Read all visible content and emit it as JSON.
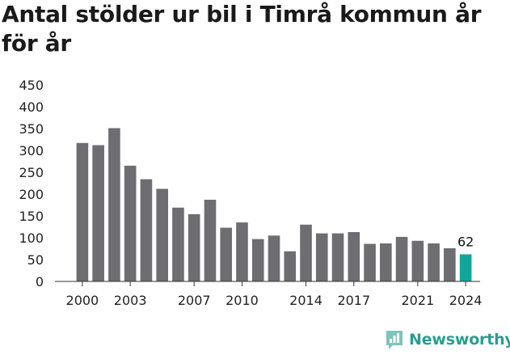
{
  "colors": {
    "bar": "#6e6d72",
    "highlight": "#11a69a",
    "axis": "#333333",
    "brand": "#2a9d8f"
  },
  "brand": {
    "name": "Newsworthy",
    "icon": "newsworthy-logo-icon"
  },
  "chart_data": {
    "type": "bar",
    "title": "Antal stölder ur bil i Timrå kommun år för år",
    "xlabel": "",
    "ylabel": "",
    "ylim": [
      0,
      450
    ],
    "yticks": [
      0,
      50,
      100,
      150,
      200,
      250,
      300,
      350,
      400,
      450
    ],
    "grid": false,
    "x": [
      2000,
      2001,
      2002,
      2003,
      2004,
      2005,
      2006,
      2007,
      2008,
      2009,
      2010,
      2011,
      2012,
      2013,
      2014,
      2015,
      2016,
      2017,
      2018,
      2019,
      2020,
      2021,
      2022,
      2023,
      2024
    ],
    "values": [
      317,
      312,
      351,
      265,
      234,
      212,
      169,
      154,
      187,
      123,
      135,
      97,
      105,
      69,
      130,
      110,
      110,
      113,
      86,
      87,
      102,
      93,
      87,
      76,
      62
    ],
    "xticks": [
      "2000",
      "2003",
      "2007",
      "2010",
      "2014",
      "2017",
      "2021",
      "2024"
    ],
    "highlight_index": 24,
    "data_labels": [
      {
        "index": 24,
        "text": "62"
      }
    ]
  }
}
